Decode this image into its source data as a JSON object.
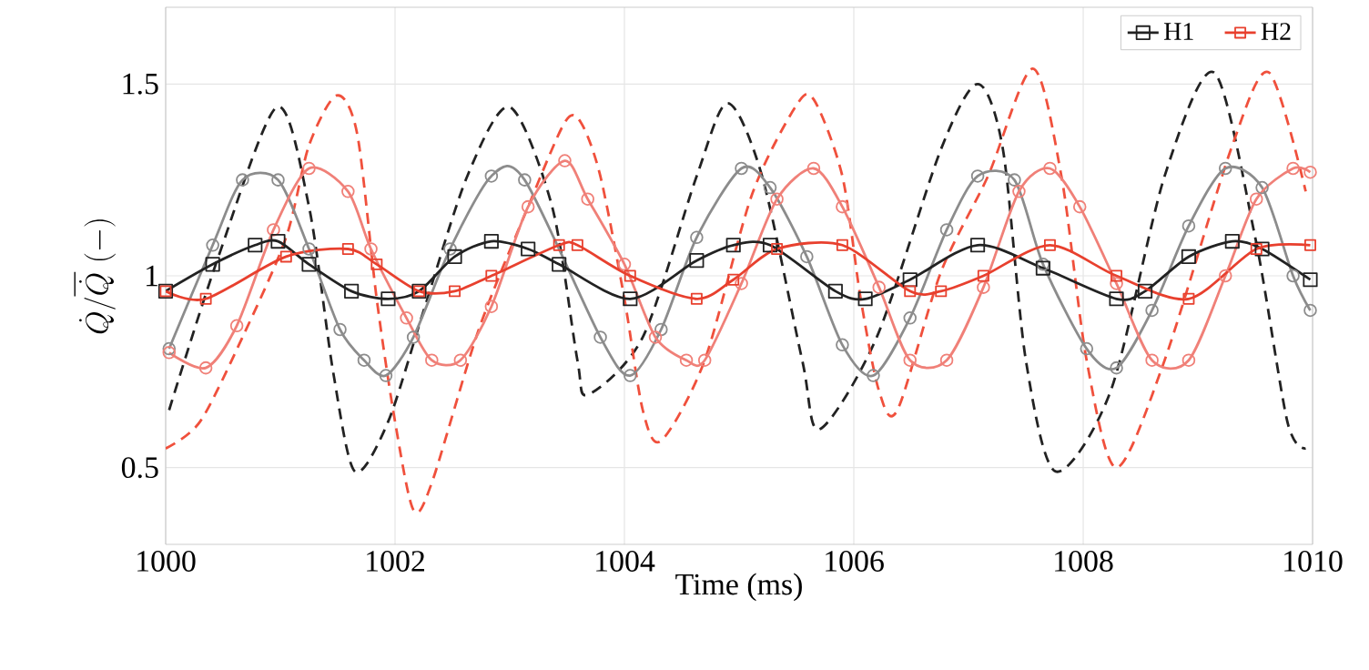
{
  "chart_data": {
    "type": "line",
    "xlabel": "Time (ms)",
    "ylabel": "\\dot{Q}/\\overline{\\dot{Q}}\\;(\\mathrm{-})",
    "xlim": [
      1000,
      1010
    ],
    "ylim": [
      0.3,
      1.7
    ],
    "xticks": [
      1000,
      1002,
      1004,
      1006,
      1008,
      1010
    ],
    "yticks": [
      0.5,
      1,
      1.5
    ],
    "grid": true,
    "legend": "top right",
    "series": [
      {
        "color": "#222222",
        "line_style": "dashed",
        "marker": "none",
        "x": [
          1000.03,
          1000.46,
          1000.97,
          1001.25,
          1001.46,
          1001.65,
          1001.94,
          1002.25,
          1002.63,
          1003.0,
          1003.37,
          1003.59,
          1003.68,
          1004.16,
          1004.63,
          1004.9,
          1005.2,
          1005.55,
          1005.7,
          1006.2,
          1006.76,
          1007.08,
          1007.3,
          1007.5,
          1007.76,
          1008.24,
          1008.71,
          1009.14,
          1009.5,
          1009.78,
          1009.94
        ],
        "values": [
          0.65,
          1.05,
          1.44,
          1.18,
          0.75,
          0.49,
          0.62,
          0.91,
          1.26,
          1.44,
          1.18,
          0.78,
          0.69,
          0.84,
          1.26,
          1.45,
          1.26,
          0.78,
          0.6,
          0.84,
          1.33,
          1.5,
          1.33,
          0.78,
          0.49,
          0.7,
          1.26,
          1.53,
          1.1,
          0.62,
          0.55
        ]
      },
      {
        "color": "#f0503c",
        "line_style": "dashed",
        "marker": "none",
        "x": [
          1000,
          1000.3,
          1000.67,
          1001.05,
          1001.25,
          1001.49,
          1001.67,
          1001.84,
          1002.0,
          1002.16,
          1002.32,
          1002.73,
          1003.16,
          1003.48,
          1003.62,
          1003.79,
          1004.0,
          1004.16,
          1004.32,
          1004.7,
          1005.11,
          1005.49,
          1005.65,
          1005.9,
          1006.06,
          1006.22,
          1006.38,
          1006.76,
          1007.17,
          1007.56,
          1007.81,
          1008.03,
          1008.29,
          1008.71,
          1009.3,
          1009.62,
          1009.94
        ],
        "values": [
          0.55,
          0.62,
          0.84,
          1.1,
          1.34,
          1.47,
          1.37,
          0.94,
          0.62,
          0.39,
          0.46,
          0.86,
          1.18,
          1.4,
          1.4,
          1.26,
          0.94,
          0.65,
          0.57,
          0.78,
          1.21,
          1.44,
          1.46,
          1.26,
          0.94,
          0.7,
          0.65,
          1.01,
          1.26,
          1.54,
          1.26,
          0.78,
          0.5,
          0.78,
          1.34,
          1.53,
          1.22
        ]
      },
      {
        "color": "#8c8c8c",
        "line_style": "solid",
        "marker": "circle",
        "x": [
          1000.03,
          1000.41,
          1000.67,
          1000.98,
          1001.25,
          1001.52,
          1001.73,
          1001.92,
          1002.16,
          1002.48,
          1002.84,
          1003.13,
          1003.79,
          1004.05,
          1004.32,
          1004.63,
          1005.02,
          1005.27,
          1005.59,
          1005.9,
          1006.17,
          1006.49,
          1006.81,
          1007.08,
          1007.4,
          1007.65,
          1008.03,
          1008.29,
          1008.6,
          1008.92,
          1009.24,
          1009.56,
          1009.83,
          1009.98
        ],
        "values": [
          0.81,
          1.08,
          1.25,
          1.25,
          1.07,
          0.86,
          0.78,
          0.74,
          0.84,
          1.07,
          1.26,
          1.25,
          0.84,
          0.74,
          0.86,
          1.1,
          1.28,
          1.23,
          1.05,
          0.82,
          0.74,
          0.89,
          1.12,
          1.26,
          1.25,
          1.03,
          0.81,
          0.76,
          0.91,
          1.13,
          1.28,
          1.23,
          1.0,
          0.91
        ]
      },
      {
        "color": "#f08078",
        "line_style": "solid",
        "marker": "circle",
        "x": [
          1000.03,
          1000.35,
          1000.62,
          1000.94,
          1001.25,
          1001.59,
          1001.79,
          1002.1,
          1002.32,
          1002.57,
          1002.84,
          1003.16,
          1003.48,
          1003.68,
          1004.0,
          1004.27,
          1004.54,
          1004.7,
          1005.02,
          1005.33,
          1005.65,
          1005.9,
          1006.22,
          1006.49,
          1006.81,
          1007.13,
          1007.44,
          1007.71,
          1007.97,
          1008.29,
          1008.6,
          1008.92,
          1009.24,
          1009.51,
          1009.83,
          1009.98
        ],
        "values": [
          0.8,
          0.76,
          0.87,
          1.12,
          1.28,
          1.22,
          1.07,
          0.89,
          0.78,
          0.78,
          0.92,
          1.18,
          1.3,
          1.2,
          1.03,
          0.84,
          0.78,
          0.78,
          0.98,
          1.2,
          1.28,
          1.18,
          0.97,
          0.78,
          0.78,
          0.97,
          1.22,
          1.28,
          1.18,
          0.98,
          0.78,
          0.78,
          1.0,
          1.2,
          1.28,
          1.27
        ]
      },
      {
        "name": "H1",
        "color": "#222222",
        "line_style": "solid",
        "marker": "square",
        "x": [
          1000,
          1000.41,
          1000.78,
          1000.98,
          1001.25,
          1001.62,
          1001.94,
          1002.21,
          1002.52,
          1002.84,
          1003.16,
          1003.43,
          1004.05,
          1004.63,
          1004.95,
          1005.27,
          1005.84,
          1006.1,
          1006.49,
          1007.08,
          1007.65,
          1008.29,
          1008.54,
          1008.92,
          1009.3,
          1009.56,
          1009.98
        ],
        "values": [
          0.96,
          1.03,
          1.08,
          1.09,
          1.03,
          0.96,
          0.94,
          0.96,
          1.05,
          1.09,
          1.07,
          1.03,
          0.94,
          1.04,
          1.08,
          1.08,
          0.96,
          0.94,
          0.99,
          1.08,
          1.02,
          0.94,
          0.96,
          1.05,
          1.09,
          1.07,
          0.99
        ]
      },
      {
        "name": "H2",
        "color": "#e8402e",
        "line_style": "solid",
        "marker": "square",
        "x": [
          1000,
          1000.35,
          1001.05,
          1001.59,
          1001.84,
          1002.21,
          1002.52,
          1002.84,
          1003.43,
          1003.59,
          1004.05,
          1004.63,
          1004.95,
          1005.33,
          1005.9,
          1006.49,
          1006.76,
          1007.13,
          1007.71,
          1008.29,
          1008.92,
          1009.51,
          1009.98
        ],
        "values": [
          0.96,
          0.94,
          1.05,
          1.07,
          1.03,
          0.96,
          0.96,
          1.0,
          1.08,
          1.08,
          1.0,
          0.94,
          0.99,
          1.07,
          1.08,
          0.96,
          0.96,
          1.0,
          1.08,
          1.0,
          0.94,
          1.07,
          1.08
        ]
      }
    ]
  }
}
